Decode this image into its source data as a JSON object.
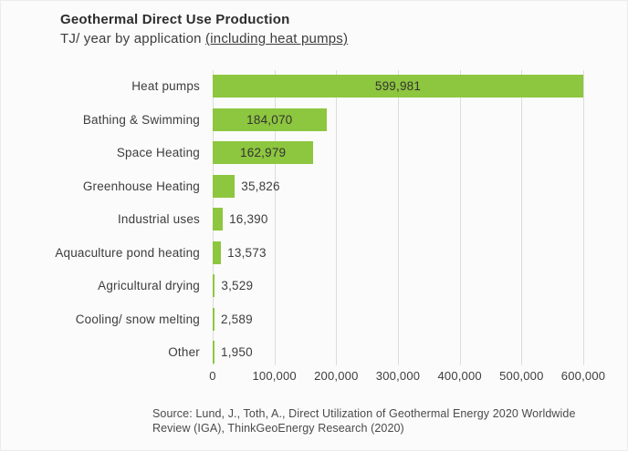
{
  "header": {
    "title": "Geothermal Direct Use Production",
    "subtitle_prefix": "TJ/ year by application ",
    "subtitle_underlined": "(including heat pumps)"
  },
  "chart_data": {
    "type": "bar",
    "orientation": "horizontal",
    "title": "Geothermal Direct Use Production",
    "subtitle": "TJ/ year by application (including heat pumps)",
    "categories": [
      "Heat pumps",
      "Bathing & Swimming",
      "Space Heating",
      "Greenhouse Heating",
      "Industrial uses",
      "Aquaculture pond heating",
      "Agricultural drying",
      "Cooling/ snow melting",
      "Other"
    ],
    "values": [
      599981,
      184070,
      162979,
      35826,
      16390,
      13573,
      3529,
      2589,
      1950
    ],
    "value_labels": [
      "599,981",
      "184,070",
      "162,979",
      "35,826",
      "16,390",
      "13,573",
      "3,529",
      "2,589",
      "1,950"
    ],
    "x_ticks": [
      0,
      100000,
      200000,
      300000,
      400000,
      500000,
      600000
    ],
    "x_tick_labels": [
      "0",
      "100,000",
      "200,000",
      "300,000",
      "400,000",
      "500,000",
      "600,000"
    ],
    "xlim": [
      0,
      600000
    ],
    "xlabel": "",
    "ylabel": "",
    "grid": true,
    "legend": false,
    "bar_color": "#8dc63f"
  },
  "footer": {
    "source_line1": "Source: Lund, J., Toth, A., Direct Utilization of Geothermal Energy 2020 Worldwide",
    "source_line2": "Review (IGA), ThinkGeoEnergy Research (2020)"
  }
}
